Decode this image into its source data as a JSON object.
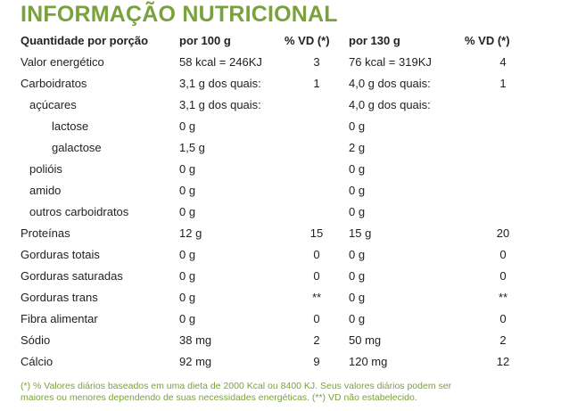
{
  "title": "INFORMAÇÃO NUTRICIONAL",
  "header": {
    "name": "Quantidade por porção",
    "v1": "por 100 g",
    "vd1": "% VD (*)",
    "v2": "por 130 g",
    "vd2": "% VD (*)"
  },
  "rows": [
    {
      "name": "Valor energético",
      "level": 0,
      "v1": "58 kcal = 246KJ",
      "vd1": "3",
      "v2": "76 kcal = 319KJ",
      "vd2": "4"
    },
    {
      "name": "Carboidratos",
      "level": 0,
      "v1": "3,1 g dos quais:",
      "vd1": "1",
      "v2": "4,0 g dos quais:",
      "vd2": "1"
    },
    {
      "name": "açúcares",
      "level": 1,
      "v1": "3,1 g dos quais:",
      "vd1": "",
      "v2": "4,0 g dos quais:",
      "vd2": ""
    },
    {
      "name": "lactose",
      "level": 2,
      "v1": "0 g",
      "vd1": "",
      "v2": "0 g",
      "vd2": ""
    },
    {
      "name": "galactose",
      "level": 2,
      "v1": "1,5 g",
      "vd1": "",
      "v2": "2 g",
      "vd2": ""
    },
    {
      "name": "polióis",
      "level": 1,
      "v1": "0 g",
      "vd1": "",
      "v2": "0 g",
      "vd2": ""
    },
    {
      "name": "amido",
      "level": 1,
      "v1": "0 g",
      "vd1": "",
      "v2": "0 g",
      "vd2": ""
    },
    {
      "name": "outros carboidratos",
      "level": 1,
      "v1": "0 g",
      "vd1": "",
      "v2": "0 g",
      "vd2": ""
    },
    {
      "name": "Proteínas",
      "level": 0,
      "v1": "12 g",
      "vd1": "15",
      "v2": "15 g",
      "vd2": "20"
    },
    {
      "name": "Gorduras totais",
      "level": 0,
      "v1": "0 g",
      "vd1": "0",
      "v2": "0 g",
      "vd2": "0"
    },
    {
      "name": "Gorduras saturadas",
      "level": 0,
      "v1": "0 g",
      "vd1": "0",
      "v2": "0 g",
      "vd2": "0"
    },
    {
      "name": "Gorduras trans",
      "level": 0,
      "v1": "0 g",
      "vd1": "**",
      "v2": "0 g",
      "vd2": "**"
    },
    {
      "name": "Fibra alimentar",
      "level": 0,
      "v1": "0 g",
      "vd1": "0",
      "v2": "0 g",
      "vd2": "0"
    },
    {
      "name": "Sódio",
      "level": 0,
      "v1": "38 mg",
      "vd1": "2",
      "v2": "50 mg",
      "vd2": "2"
    },
    {
      "name": "Cálcio",
      "level": 0,
      "v1": "92 mg",
      "vd1": "9",
      "v2": "120 mg",
      "vd2": "12"
    }
  ],
  "footnote": {
    "line1": "(*) % Valores diários baseados em uma dieta de 2000 Kcal ou 8400 KJ. Seus valores diários podem ser",
    "line2": "maiores ou menores dependendo de suas necessidades energéticas. (**) VD não estabelecido."
  },
  "colors": {
    "accent": "#7aa23c",
    "text": "#222222"
  }
}
